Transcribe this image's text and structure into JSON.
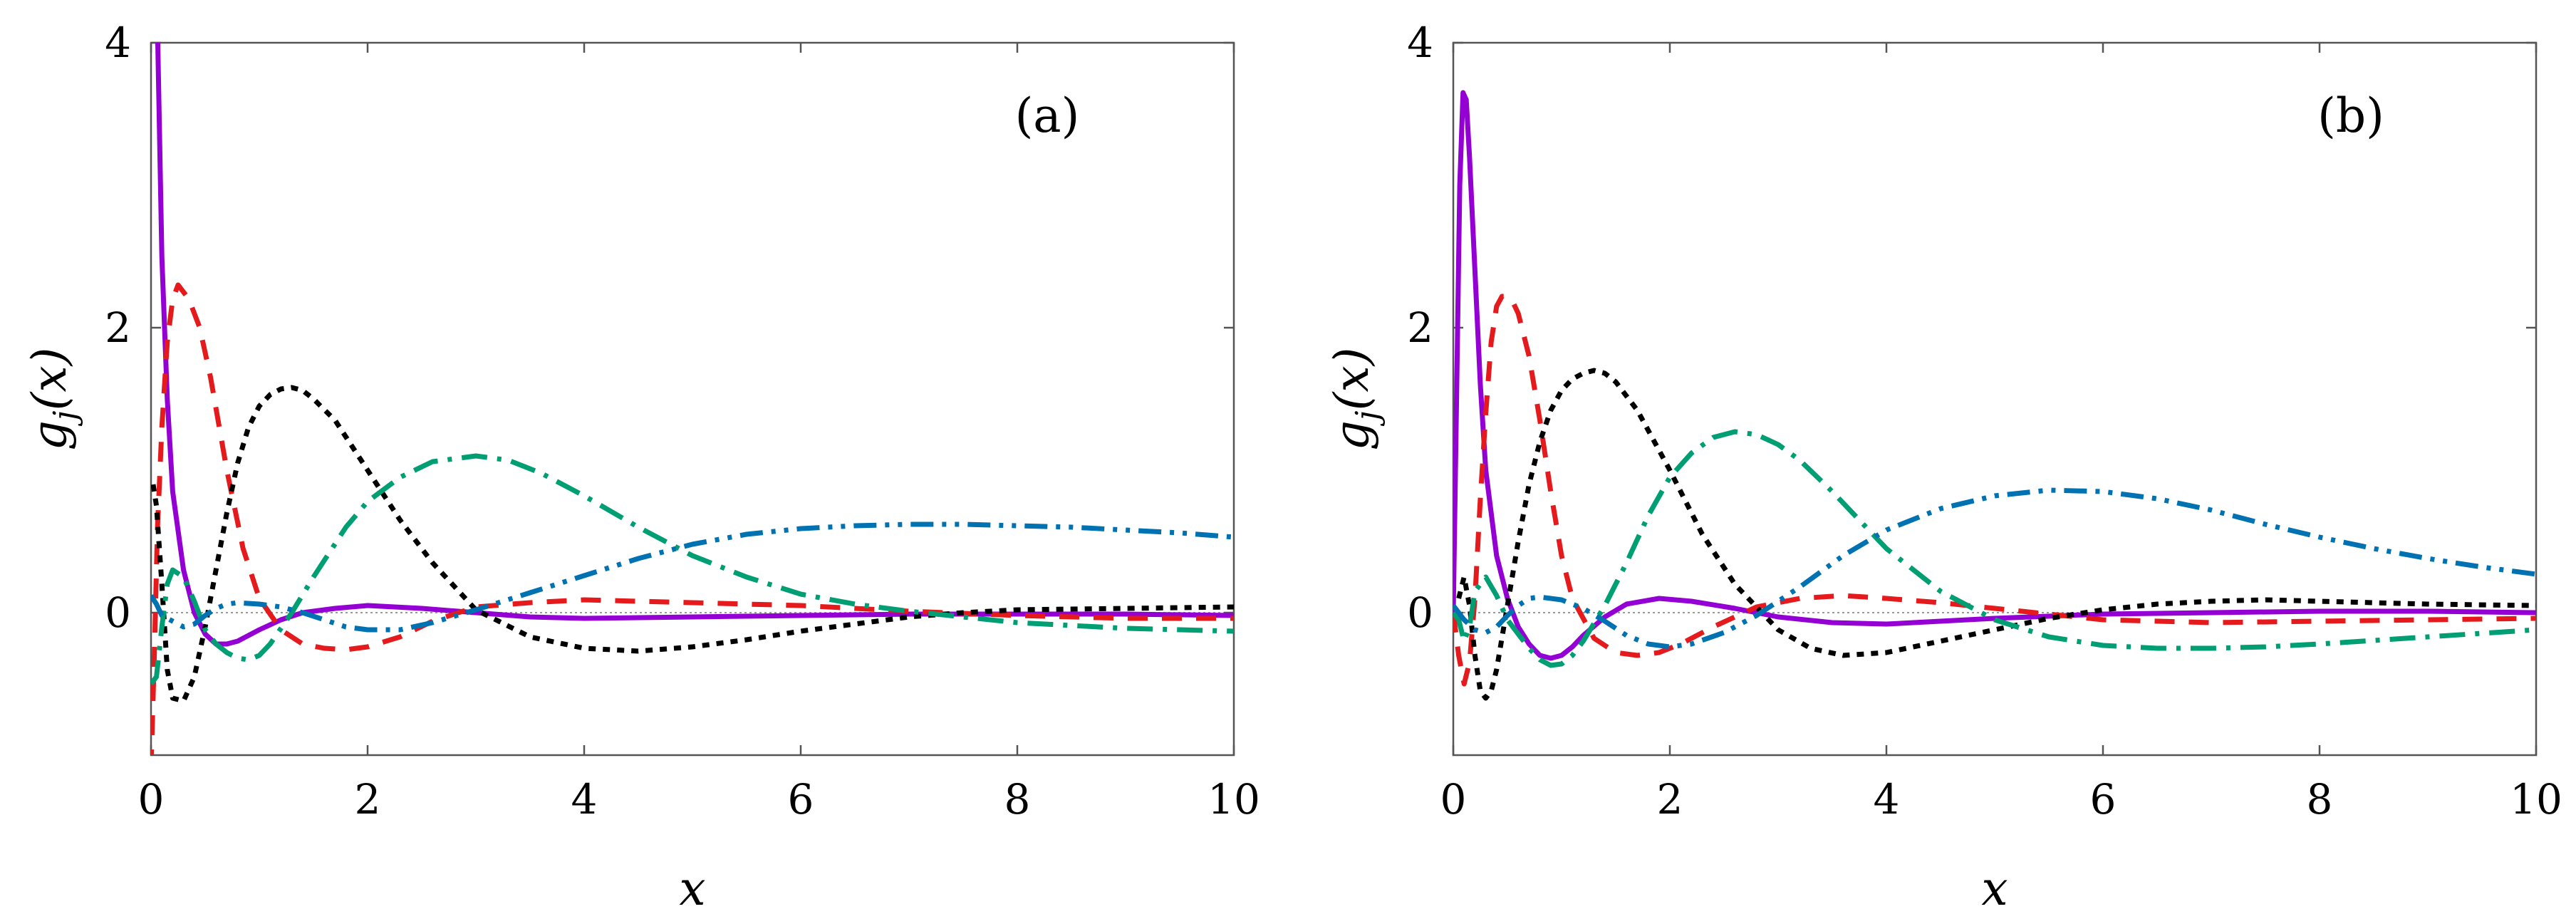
{
  "chart_data": [
    {
      "type": "line",
      "panel_label": "(a)",
      "xlabel": "x",
      "ylabel": "g_j(x)",
      "xlim": [
        0,
        10
      ],
      "ylim": [
        -1,
        4
      ],
      "xticks": [
        0,
        2,
        4,
        6,
        8,
        10
      ],
      "xtick_labels": [
        "0",
        "2",
        "4",
        "6",
        "8",
        "10"
      ],
      "yticks": [
        0,
        2,
        4
      ],
      "ytick_labels": [
        "0",
        "2",
        "4"
      ],
      "zero_line": true,
      "series": [
        {
          "name": "solid-purple",
          "color": "#9400d3",
          "dash": "solid",
          "x": [
            0.03,
            0.06,
            0.1,
            0.15,
            0.2,
            0.3,
            0.4,
            0.5,
            0.6,
            0.7,
            0.8,
            1.0,
            1.2,
            1.4,
            1.7,
            2.0,
            2.5,
            3.0,
            3.5,
            4.0,
            5.0,
            6.0,
            7.0,
            8.0,
            9.0,
            10.0
          ],
          "y": [
            4.3,
            4.1,
            2.5,
            1.5,
            0.85,
            0.3,
            0.0,
            -0.15,
            -0.22,
            -0.22,
            -0.2,
            -0.12,
            -0.05,
            0.0,
            0.03,
            0.05,
            0.03,
            0.0,
            -0.03,
            -0.04,
            -0.03,
            -0.02,
            -0.01,
            -0.01,
            -0.01,
            -0.02
          ]
        },
        {
          "name": "dashed-red",
          "color": "#e41a1c",
          "dash": "28 20",
          "x": [
            0.0,
            0.03,
            0.06,
            0.1,
            0.15,
            0.2,
            0.25,
            0.3,
            0.35,
            0.45,
            0.55,
            0.7,
            0.85,
            1.0,
            1.2,
            1.4,
            1.6,
            1.8,
            2.0,
            2.3,
            2.6,
            3.0,
            3.5,
            4.0,
            4.5,
            5.0,
            6.0,
            7.0,
            8.0,
            9.0,
            10.0
          ],
          "y": [
            -1.1,
            -0.3,
            0.6,
            1.3,
            1.9,
            2.2,
            2.3,
            2.25,
            2.2,
            2.0,
            1.65,
            1.0,
            0.45,
            0.1,
            -0.12,
            -0.22,
            -0.25,
            -0.26,
            -0.24,
            -0.17,
            -0.06,
            0.04,
            0.07,
            0.09,
            0.08,
            0.07,
            0.05,
            0.01,
            -0.02,
            -0.04,
            -0.04
          ]
        },
        {
          "name": "dotted-black",
          "color": "#000000",
          "dash": "10 10",
          "x": [
            0.02,
            0.05,
            0.1,
            0.15,
            0.2,
            0.3,
            0.4,
            0.5,
            0.6,
            0.7,
            0.8,
            0.9,
            1.0,
            1.1,
            1.2,
            1.3,
            1.4,
            1.5,
            1.7,
            2.0,
            2.3,
            2.6,
            3.0,
            3.5,
            4.0,
            4.5,
            5.0,
            5.5,
            6.0,
            6.5,
            7.0,
            7.5,
            8.0,
            9.0,
            10.0
          ],
          "y": [
            0.9,
            0.75,
            0.2,
            -0.4,
            -0.6,
            -0.62,
            -0.45,
            -0.1,
            0.3,
            0.7,
            1.05,
            1.3,
            1.45,
            1.53,
            1.57,
            1.58,
            1.56,
            1.5,
            1.35,
            1.0,
            0.65,
            0.35,
            0.02,
            -0.17,
            -0.25,
            -0.27,
            -0.24,
            -0.19,
            -0.13,
            -0.08,
            -0.03,
            0.0,
            0.02,
            0.03,
            0.04
          ]
        },
        {
          "name": "dash-dot-green",
          "color": "#009e73",
          "dash": "36 14 6 14",
          "x": [
            0.0,
            0.05,
            0.1,
            0.15,
            0.2,
            0.3,
            0.4,
            0.5,
            0.6,
            0.7,
            0.8,
            0.9,
            1.0,
            1.1,
            1.3,
            1.5,
            1.8,
            2.0,
            2.3,
            2.6,
            3.0,
            3.3,
            3.6,
            4.0,
            4.5,
            5.0,
            5.5,
            6.0,
            6.5,
            7.0,
            7.5,
            8.0,
            9.0,
            10.0
          ],
          "y": [
            -0.5,
            -0.45,
            -0.1,
            0.2,
            0.3,
            0.25,
            0.08,
            -0.12,
            -0.22,
            -0.28,
            -0.32,
            -0.33,
            -0.3,
            -0.22,
            0.0,
            0.25,
            0.6,
            0.78,
            0.95,
            1.06,
            1.1,
            1.07,
            0.98,
            0.82,
            0.6,
            0.4,
            0.25,
            0.13,
            0.06,
            0.01,
            -0.03,
            -0.07,
            -0.11,
            -0.13
          ]
        },
        {
          "name": "dash-dot-dot-blue",
          "color": "#0072b2",
          "dash": "32 12 6 12 6 12",
          "x": [
            0.0,
            0.05,
            0.1,
            0.2,
            0.3,
            0.4,
            0.5,
            0.6,
            0.7,
            0.8,
            1.0,
            1.2,
            1.4,
            1.6,
            1.8,
            2.0,
            2.3,
            2.6,
            3.0,
            3.5,
            4.0,
            4.5,
            5.0,
            5.5,
            6.0,
            6.5,
            7.0,
            7.5,
            8.0,
            8.5,
            9.0,
            9.5,
            10.0
          ],
          "y": [
            0.12,
            0.06,
            -0.02,
            -0.06,
            -0.1,
            -0.08,
            -0.02,
            0.03,
            0.06,
            0.07,
            0.06,
            0.04,
            0.0,
            -0.05,
            -0.1,
            -0.12,
            -0.12,
            -0.07,
            0.02,
            0.14,
            0.26,
            0.38,
            0.48,
            0.55,
            0.59,
            0.61,
            0.62,
            0.62,
            0.61,
            0.6,
            0.58,
            0.56,
            0.53
          ]
        }
      ]
    },
    {
      "type": "line",
      "panel_label": "(b)",
      "xlabel": "x",
      "ylabel": "g_j(x)",
      "xlim": [
        0,
        10
      ],
      "ylim": [
        -1,
        4
      ],
      "xticks": [
        0,
        2,
        4,
        6,
        8,
        10
      ],
      "xtick_labels": [
        "0",
        "2",
        "4",
        "6",
        "8",
        "10"
      ],
      "yticks": [
        0,
        2,
        4
      ],
      "ytick_labels": [
        "0",
        "2",
        "4"
      ],
      "zero_line": true,
      "series": [
        {
          "name": "solid-purple",
          "color": "#9400d3",
          "dash": "solid",
          "x": [
            0.0,
            0.03,
            0.06,
            0.09,
            0.12,
            0.15,
            0.2,
            0.25,
            0.3,
            0.4,
            0.5,
            0.6,
            0.7,
            0.8,
            0.9,
            1.0,
            1.1,
            1.2,
            1.4,
            1.6,
            1.9,
            2.2,
            2.6,
            3.0,
            3.5,
            4.0,
            5.0,
            6.0,
            7.0,
            8.0,
            9.0,
            10.0
          ],
          "y": [
            0.0,
            1.5,
            3.0,
            3.65,
            3.6,
            3.2,
            2.4,
            1.6,
            1.0,
            0.4,
            0.1,
            -0.1,
            -0.22,
            -0.3,
            -0.32,
            -0.3,
            -0.24,
            -0.16,
            -0.03,
            0.06,
            0.1,
            0.08,
            0.03,
            -0.03,
            -0.07,
            -0.08,
            -0.04,
            -0.01,
            0.0,
            0.01,
            0.01,
            0.0
          ]
        },
        {
          "name": "dashed-red",
          "color": "#e41a1c",
          "dash": "28 20",
          "x": [
            0.0,
            0.05,
            0.1,
            0.15,
            0.2,
            0.25,
            0.3,
            0.35,
            0.4,
            0.45,
            0.5,
            0.55,
            0.6,
            0.7,
            0.8,
            0.9,
            1.0,
            1.1,
            1.3,
            1.5,
            1.7,
            1.9,
            2.1,
            2.4,
            2.8,
            3.2,
            3.6,
            4.0,
            4.5,
            5.0,
            6.0,
            7.0,
            8.0,
            9.0,
            10.0
          ],
          "y": [
            0.0,
            -0.3,
            -0.5,
            -0.35,
            0.1,
            0.8,
            1.4,
            1.9,
            2.15,
            2.22,
            2.22,
            2.18,
            2.1,
            1.8,
            1.35,
            0.85,
            0.4,
            0.1,
            -0.18,
            -0.28,
            -0.3,
            -0.28,
            -0.22,
            -0.1,
            0.04,
            0.1,
            0.12,
            0.1,
            0.07,
            0.03,
            -0.05,
            -0.07,
            -0.06,
            -0.05,
            -0.04
          ]
        },
        {
          "name": "dotted-black",
          "color": "#000000",
          "dash": "10 10",
          "x": [
            0.05,
            0.1,
            0.15,
            0.2,
            0.25,
            0.3,
            0.35,
            0.4,
            0.5,
            0.6,
            0.7,
            0.8,
            0.9,
            1.0,
            1.1,
            1.2,
            1.3,
            1.4,
            1.5,
            1.7,
            2.0,
            2.3,
            2.6,
            3.0,
            3.3,
            3.6,
            4.0,
            4.5,
            5.0,
            5.5,
            6.0,
            6.5,
            7.0,
            7.5,
            8.0,
            9.0,
            10.0
          ],
          "y": [
            0.1,
            0.25,
            0.05,
            -0.3,
            -0.55,
            -0.6,
            -0.55,
            -0.4,
            0.05,
            0.5,
            0.9,
            1.2,
            1.42,
            1.56,
            1.64,
            1.68,
            1.7,
            1.68,
            1.62,
            1.42,
            1.0,
            0.55,
            0.2,
            -0.12,
            -0.25,
            -0.3,
            -0.28,
            -0.2,
            -0.12,
            -0.04,
            0.02,
            0.06,
            0.08,
            0.09,
            0.08,
            0.06,
            0.05
          ]
        },
        {
          "name": "dash-dot-green",
          "color": "#009e73",
          "dash": "36 14 6 14",
          "x": [
            0.0,
            0.05,
            0.1,
            0.15,
            0.2,
            0.3,
            0.4,
            0.5,
            0.6,
            0.7,
            0.8,
            0.9,
            1.0,
            1.1,
            1.2,
            1.4,
            1.6,
            1.8,
            2.0,
            2.2,
            2.4,
            2.6,
            2.8,
            3.0,
            3.2,
            3.5,
            4.0,
            4.5,
            5.0,
            5.5,
            6.0,
            6.5,
            7.0,
            7.5,
            8.0,
            9.0,
            10.0
          ],
          "y": [
            0.0,
            -0.05,
            -0.2,
            -0.1,
            0.15,
            0.25,
            0.12,
            -0.05,
            -0.15,
            -0.25,
            -0.33,
            -0.37,
            -0.36,
            -0.3,
            -0.2,
            0.05,
            0.35,
            0.68,
            0.95,
            1.12,
            1.23,
            1.27,
            1.25,
            1.18,
            1.07,
            0.85,
            0.45,
            0.15,
            -0.05,
            -0.17,
            -0.23,
            -0.25,
            -0.25,
            -0.24,
            -0.22,
            -0.17,
            -0.12
          ]
        },
        {
          "name": "dash-dot-dot-blue",
          "color": "#0072b2",
          "dash": "32 12 6 12 6 12",
          "x": [
            0.0,
            0.1,
            0.2,
            0.3,
            0.4,
            0.5,
            0.6,
            0.7,
            0.8,
            1.0,
            1.2,
            1.4,
            1.6,
            1.8,
            2.0,
            2.2,
            2.5,
            2.8,
            3.2,
            3.6,
            4.0,
            4.5,
            5.0,
            5.5,
            6.0,
            6.5,
            7.0,
            7.5,
            8.0,
            8.5,
            9.0,
            9.5,
            10.0
          ],
          "y": [
            0.05,
            -0.05,
            -0.12,
            -0.14,
            -0.1,
            -0.02,
            0.05,
            0.1,
            0.11,
            0.09,
            0.03,
            -0.06,
            -0.16,
            -0.22,
            -0.24,
            -0.22,
            -0.14,
            -0.02,
            0.18,
            0.4,
            0.58,
            0.73,
            0.82,
            0.86,
            0.85,
            0.8,
            0.72,
            0.62,
            0.53,
            0.45,
            0.38,
            0.32,
            0.27
          ]
        }
      ]
    }
  ]
}
